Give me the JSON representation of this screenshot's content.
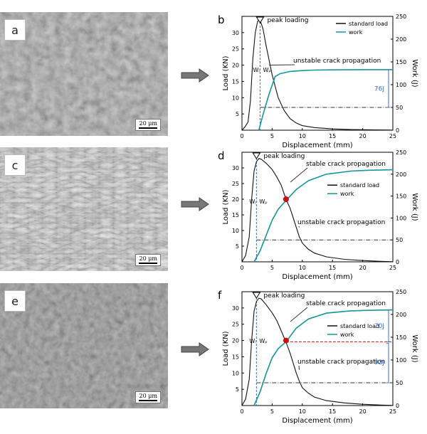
{
  "panels": {
    "a": {
      "letter": "a",
      "scale": "20 μm"
    },
    "c": {
      "letter": "c",
      "scale": "20 μm"
    },
    "e": {
      "letter": "e",
      "scale": "20 μm"
    }
  },
  "charts": [
    {
      "letter": "b",
      "peak_label": "peak loading",
      "wi_label": "Wᵢ",
      "wp_label": "Wₚ",
      "legend": {
        "load": "standard load",
        "work": "work"
      },
      "annotations": {
        "unstable": "unstable crack propagation",
        "work_value": "76J"
      }
    },
    {
      "letter": "d",
      "peak_label": "peak loading",
      "wi_label": "Wᵢ",
      "wp_label": "Wₚ",
      "legend": {
        "load": "standard load",
        "work": "work"
      },
      "annotations": {
        "stable": "stable crack propagation",
        "unstable": "unstable crack propagation"
      }
    },
    {
      "letter": "f",
      "peak_label": "peak loading",
      "wi_label": "Wᵢ",
      "wp_label": "Wₚ",
      "legend": {
        "load": "standard load",
        "work": "work"
      },
      "annotations": {
        "stable": "stable crack propagation",
        "unstable": "unstable crack propagation",
        "work_value_upper": "70J",
        "work_value_lower": "92J"
      }
    }
  ],
  "chart_data": [
    {
      "type": "line",
      "xlabel": "Displacement (mm)",
      "ylabel": "Load (KN)",
      "y2label": "Work (J)",
      "xlim": [
        0,
        25
      ],
      "ylim": [
        0,
        35
      ],
      "y2lim": [
        0,
        250
      ],
      "xticks": [
        0,
        5,
        10,
        15,
        20,
        25
      ],
      "yticks": [
        5,
        10,
        15,
        20,
        25,
        30
      ],
      "y2ticks": [
        0,
        50,
        100,
        150,
        200,
        250
      ],
      "legend_position": "top-right",
      "series": [
        {
          "name": "standard load",
          "axis": "left",
          "x": [
            0,
            0.5,
            1,
            1.4,
            1.8,
            2.2,
            2.6,
            3.0,
            3.5,
            4,
            5,
            6,
            7,
            8,
            9,
            10,
            12,
            15,
            18,
            22,
            25
          ],
          "y": [
            0,
            1,
            2.5,
            9,
            22,
            30,
            33.5,
            34,
            31,
            26,
            17,
            10,
            6,
            3.5,
            2.2,
            1.4,
            0.8,
            0.4,
            0.2,
            0.1,
            0.05
          ]
        },
        {
          "name": "work",
          "axis": "right",
          "x": [
            2.8,
            3.5,
            4.5,
            5.5,
            6.3,
            8,
            10,
            12,
            15,
            20,
            25
          ],
          "y": [
            0,
            35,
            80,
            118,
            124,
            129,
            131,
            132,
            132.5,
            133,
            133
          ]
        }
      ],
      "vline_x": 3.0,
      "hline_y2": 50
    },
    {
      "type": "line",
      "xlabel": "Displacement (mm)",
      "ylabel": "Load (KN)",
      "y2label": "Work (J)",
      "xlim": [
        0,
        25
      ],
      "ylim": [
        0,
        35
      ],
      "y2lim": [
        0,
        250
      ],
      "xticks": [
        0,
        5,
        10,
        15,
        20,
        25
      ],
      "yticks": [
        5,
        10,
        15,
        20,
        25,
        30
      ],
      "y2ticks": [
        0,
        50,
        100,
        150,
        200,
        250
      ],
      "legend_position": "right",
      "series": [
        {
          "name": "standard load",
          "axis": "left",
          "x": [
            0,
            0.6,
            1.2,
            1.6,
            2.0,
            2.4,
            2.8,
            3.2,
            4,
            5,
            5.8,
            6.5,
            7.3,
            8,
            9,
            9.5,
            10,
            11,
            12,
            14,
            17,
            20,
            23,
            25
          ],
          "y": [
            0,
            2,
            8,
            20,
            29,
            32,
            33,
            32.8,
            31.5,
            29.5,
            27,
            24.5,
            20,
            17,
            11,
            8,
            6,
            4,
            2.8,
            1.6,
            0.8,
            0.4,
            0.15,
            0.05
          ]
        },
        {
          "name": "work",
          "axis": "right",
          "x": [
            2.0,
            3,
            4,
            5,
            6,
            7.3,
            9,
            11,
            14,
            18,
            21,
            25
          ],
          "y": [
            0,
            25,
            60,
            95,
            120,
            140,
            165,
            185,
            200,
            207,
            209,
            210
          ]
        }
      ],
      "vline_x": 2.4,
      "hline_y2": 50,
      "marker": {
        "x": 7.3,
        "y": 20
      }
    },
    {
      "type": "line",
      "xlabel": "Displacement (mm)",
      "ylabel": "Load (KN)",
      "y2label": "Work (J)",
      "xlim": [
        0,
        25
      ],
      "ylim": [
        0,
        35
      ],
      "y2lim": [
        0,
        250
      ],
      "xticks": [
        0,
        5,
        10,
        15,
        20,
        25
      ],
      "yticks": [
        5,
        10,
        15,
        20,
        25,
        30
      ],
      "y2ticks": [
        0,
        50,
        100,
        150,
        200,
        250
      ],
      "legend_position": "right",
      "series": [
        {
          "name": "standard load",
          "axis": "left",
          "x": [
            0,
            0.6,
            1.2,
            1.6,
            2.0,
            2.4,
            2.8,
            3.2,
            4,
            5,
            5.8,
            6.5,
            7.3,
            8,
            9,
            9.5,
            10,
            11,
            12,
            14,
            17,
            20,
            23,
            25
          ],
          "y": [
            0,
            2,
            8,
            20,
            29,
            32,
            33,
            32.8,
            31,
            28.5,
            26,
            23,
            19.5,
            16,
            10,
            7.5,
            5.5,
            3.8,
            2.6,
            1.5,
            0.8,
            0.4,
            0.15,
            0.05
          ]
        },
        {
          "name": "work",
          "axis": "right",
          "x": [
            2.0,
            3,
            4,
            5,
            6,
            7.3,
            9,
            11,
            14,
            18,
            21,
            25
          ],
          "y": [
            0,
            30,
            70,
            105,
            125,
            140,
            170,
            190,
            203,
            208,
            209,
            210
          ]
        }
      ],
      "vline_x": 2.4,
      "hline_y2": 50,
      "hline2_y2": 140,
      "marker": {
        "x": 7.3,
        "y": 20
      }
    }
  ]
}
